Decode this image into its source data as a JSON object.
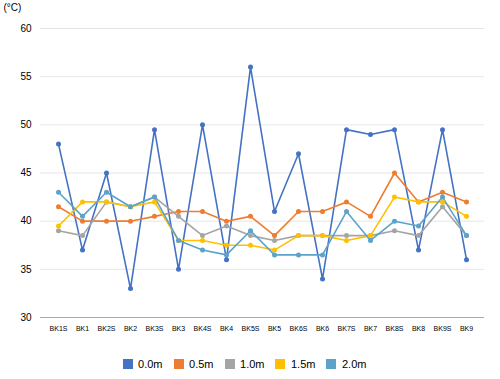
{
  "chart_data": {
    "type": "line",
    "ylabel": "(°C)",
    "categories": [
      "BK1S",
      "BK1",
      "BK2S",
      "BK2",
      "BK3S",
      "BK3",
      "BK4S",
      "BK4",
      "BK5S",
      "BK5",
      "BK6S",
      "BK6",
      "BK7S",
      "BK7",
      "BK8S",
      "BK8",
      "BK9S",
      "BK9"
    ],
    "series": [
      {
        "name": "0.0m",
        "color": "#4472C4",
        "values": [
          48,
          37,
          45,
          33,
          49.5,
          35,
          50,
          36,
          56,
          41,
          47,
          34,
          49.5,
          49,
          49.5,
          37,
          49.5,
          36
        ]
      },
      {
        "name": "0.5m",
        "color": "#ED7D31",
        "values": [
          41.5,
          40,
          40,
          40,
          40.5,
          41,
          41,
          40,
          40.5,
          38.5,
          41,
          41,
          42,
          40.5,
          45,
          42,
          43,
          42
        ]
      },
      {
        "name": "1.0m",
        "color": "#A5A5A5",
        "values": [
          39,
          38.5,
          42,
          41.5,
          42.5,
          40.5,
          38.5,
          39.5,
          38.5,
          38,
          38.5,
          38.5,
          38.5,
          38.5,
          39,
          38.5,
          41.5,
          38.5
        ]
      },
      {
        "name": "1.5m",
        "color": "#FFC000",
        "values": [
          39.5,
          42,
          42,
          41.5,
          42,
          38,
          38,
          37.5,
          37.5,
          37,
          38.5,
          38.5,
          38,
          38.5,
          42.5,
          42,
          42,
          40.5
        ]
      },
      {
        "name": "2.0m",
        "color": "#5BA3C9",
        "values": [
          43,
          40.5,
          43,
          41.5,
          42.5,
          38,
          37,
          36.5,
          39,
          36.5,
          36.5,
          36.5,
          41,
          38,
          40,
          39.5,
          42.5,
          38.5
        ]
      }
    ],
    "ylim": [
      30,
      60
    ],
    "yticks": [
      30,
      35,
      40,
      45,
      50,
      55,
      60
    ],
    "grid": true,
    "legend": "bottom",
    "marker": "circle"
  }
}
